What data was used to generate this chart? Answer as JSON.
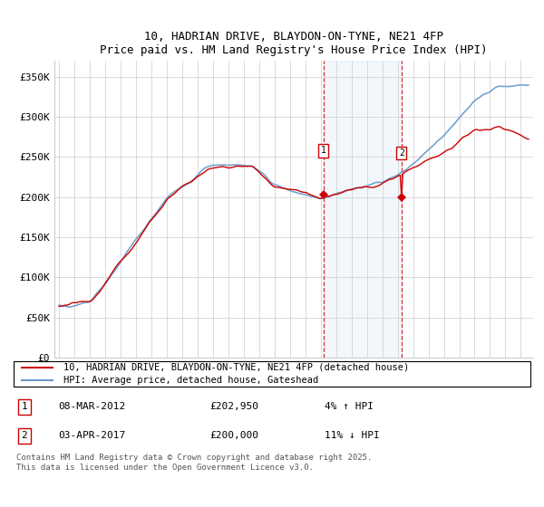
{
  "title": "10, HADRIAN DRIVE, BLAYDON-ON-TYNE, NE21 4FP",
  "subtitle": "Price paid vs. HM Land Registry's House Price Index (HPI)",
  "ylim": [
    0,
    370000
  ],
  "yticks": [
    0,
    50000,
    100000,
    150000,
    200000,
    250000,
    300000,
    350000
  ],
  "ytick_labels": [
    "£0",
    "£50K",
    "£100K",
    "£150K",
    "£200K",
    "£250K",
    "£300K",
    "£350K"
  ],
  "sale1_t": 2012.17,
  "sale2_t": 2017.25,
  "sale1": {
    "date": "08-MAR-2012",
    "price": 202950,
    "label": "1",
    "hpi_pct": "4% ↑ HPI"
  },
  "sale2": {
    "date": "03-APR-2017",
    "price": 200000,
    "label": "2",
    "hpi_pct": "11% ↓ HPI"
  },
  "legend_red": "10, HADRIAN DRIVE, BLAYDON-ON-TYNE, NE21 4FP (detached house)",
  "legend_blue": "HPI: Average price, detached house, Gateshead",
  "footer": "Contains HM Land Registry data © Crown copyright and database right 2025.\nThis data is licensed under the Open Government Licence v3.0.",
  "red_color": "#cc0000",
  "blue_color": "#6699cc",
  "shade_color": "#cce0f5",
  "grid_color": "#cccccc",
  "bg_color": "#ffffff",
  "xlim_left": 1994.7,
  "xlim_right": 2025.8
}
